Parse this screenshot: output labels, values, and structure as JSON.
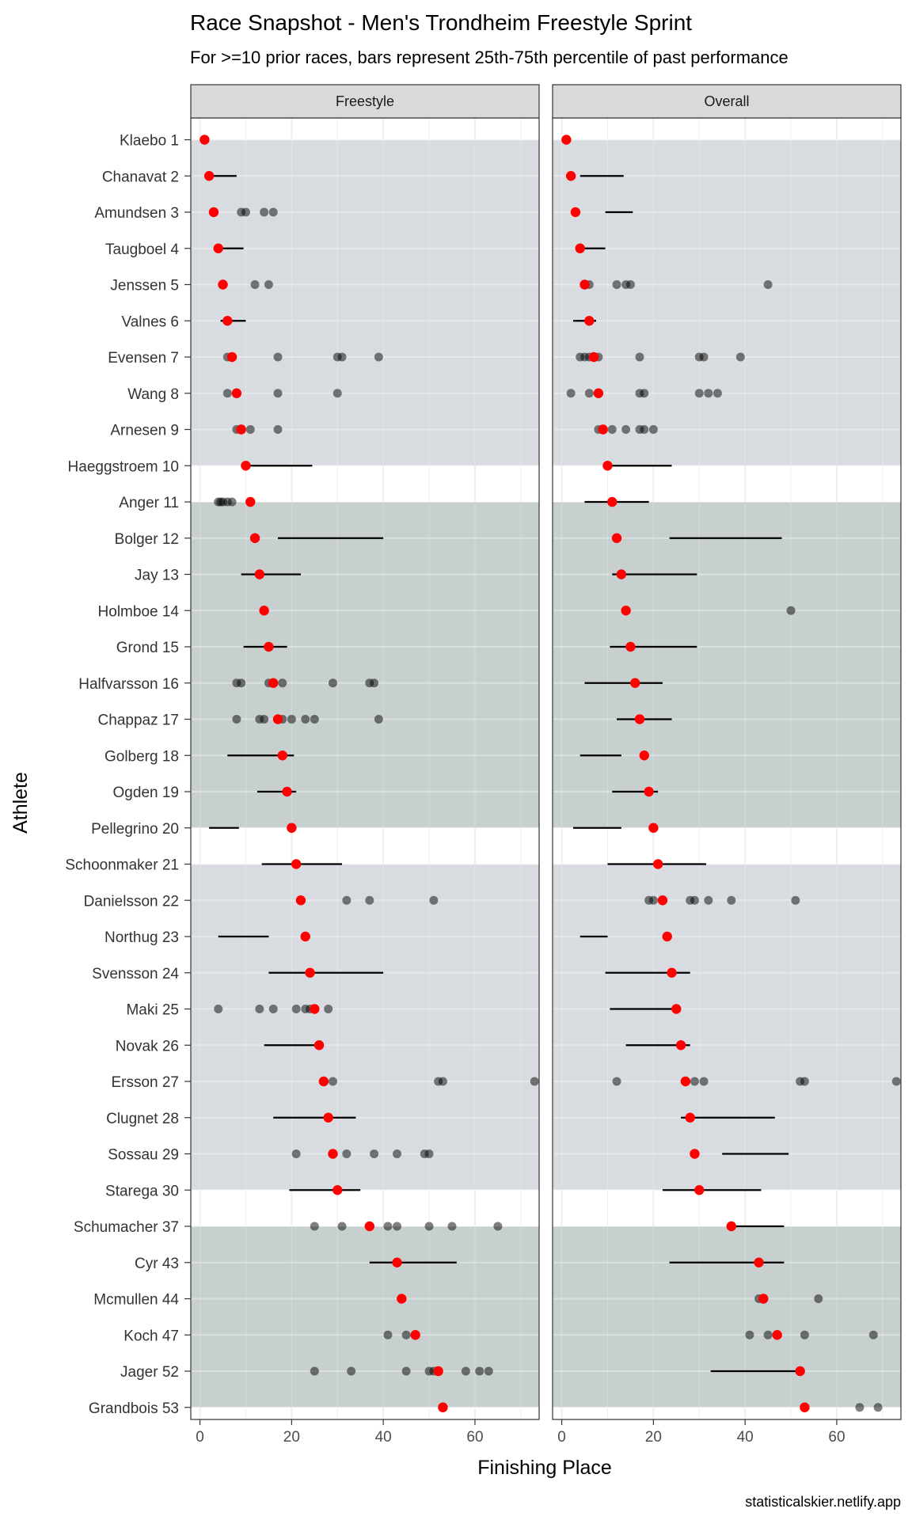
{
  "title": "Race Snapshot -  Men's Trondheim Freestyle Sprint",
  "subtitle": "For >=10 prior races, bars represent 25th-75th percentile of past performance",
  "caption": "statisticalskier.netlify.app",
  "colors": {
    "panel_border": "#333333",
    "strip_fill": "#d9d9d9",
    "band_light": "#d8dce1",
    "band_dark": "#c7d0cf",
    "point_red": "#ff0000",
    "point_gray": "#000000",
    "grid": "#ebebeb"
  },
  "chart_data": {
    "type": "scatter",
    "xlabel": "Finishing Place",
    "ylabel": "Athlete",
    "xlim": [
      -2,
      74
    ],
    "x_ticks": [
      0,
      20,
      40,
      60
    ],
    "grid": true,
    "facets": [
      "Freestyle",
      "Overall"
    ],
    "bands": [
      {
        "from": "Klaebo 1",
        "to": "Haeggstroem 10",
        "shade": "light"
      },
      {
        "from": "Anger 11",
        "to": "Pellegrino 20",
        "shade": "dark"
      },
      {
        "from": "Schoonmaker 21",
        "to": "Starega 30",
        "shade": "light"
      },
      {
        "from": "Schumacher 37",
        "to": "Grandbois 53",
        "shade": "dark"
      }
    ],
    "athletes": [
      {
        "name": "Klaebo 1",
        "place": 1,
        "freestyle": {
          "bar": null,
          "past": []
        },
        "overall": {
          "bar": null,
          "past": []
        }
      },
      {
        "name": "Chanavat 2",
        "place": 2,
        "freestyle": {
          "bar": [
            2,
            8
          ],
          "past": []
        },
        "overall": {
          "bar": [
            4,
            13.5
          ],
          "past": []
        }
      },
      {
        "name": "Amundsen 3",
        "place": 3,
        "freestyle": {
          "bar": null,
          "past": [
            9,
            10,
            14,
            16
          ]
        },
        "overall": {
          "bar": [
            9.5,
            15.5
          ],
          "past": []
        }
      },
      {
        "name": "Taugboel 4",
        "place": 4,
        "freestyle": {
          "bar": [
            4,
            9.5
          ],
          "past": []
        },
        "overall": {
          "bar": [
            4,
            9.5
          ],
          "past": []
        }
      },
      {
        "name": "Jenssen 5",
        "place": 5,
        "freestyle": {
          "bar": null,
          "past": [
            12,
            15
          ]
        },
        "overall": {
          "bar": null,
          "past": [
            6,
            12,
            14,
            15,
            45
          ]
        }
      },
      {
        "name": "Valnes 6",
        "place": 6,
        "freestyle": {
          "bar": [
            4.5,
            10
          ],
          "past": []
        },
        "overall": {
          "bar": [
            2.5,
            7.5
          ],
          "past": []
        }
      },
      {
        "name": "Evensen 7",
        "place": 7,
        "freestyle": {
          "bar": null,
          "past": [
            6,
            17,
            30,
            31,
            39
          ]
        },
        "overall": {
          "bar": null,
          "past": [
            4,
            5,
            6,
            8,
            17,
            30,
            31,
            39
          ]
        }
      },
      {
        "name": "Wang 8",
        "place": 8,
        "freestyle": {
          "bar": null,
          "past": [
            6,
            17,
            30
          ]
        },
        "overall": {
          "bar": null,
          "past": [
            2,
            6,
            17,
            18,
            30,
            32,
            34
          ]
        }
      },
      {
        "name": "Arnesen 9",
        "place": 9,
        "freestyle": {
          "bar": null,
          "past": [
            8,
            9,
            11,
            17
          ]
        },
        "overall": {
          "bar": null,
          "past": [
            8,
            9,
            11,
            14,
            17,
            18,
            20
          ]
        }
      },
      {
        "name": "Haeggstroem 10",
        "place": 10,
        "freestyle": {
          "bar": [
            10,
            24.5
          ],
          "past": []
        },
        "overall": {
          "bar": [
            10,
            24
          ],
          "past": []
        }
      },
      {
        "name": "Anger 11",
        "place": 11,
        "freestyle": {
          "bar": null,
          "past": [
            4,
            4.5,
            5,
            6,
            7
          ]
        },
        "overall": {
          "bar": [
            5,
            19
          ],
          "past": []
        }
      },
      {
        "name": "Bolger 12",
        "place": 12,
        "freestyle": {
          "bar": [
            17,
            40
          ],
          "past": []
        },
        "overall": {
          "bar": [
            23.5,
            48
          ],
          "past": []
        }
      },
      {
        "name": "Jay 13",
        "place": 13,
        "freestyle": {
          "bar": [
            9,
            22
          ],
          "past": []
        },
        "overall": {
          "bar": [
            11,
            29.5
          ],
          "past": []
        }
      },
      {
        "name": "Holmboe 14",
        "place": 14,
        "freestyle": {
          "bar": null,
          "past": []
        },
        "overall": {
          "bar": null,
          "past": [
            50
          ]
        }
      },
      {
        "name": "Grond 15",
        "place": 15,
        "freestyle": {
          "bar": [
            9.5,
            19
          ],
          "past": []
        },
        "overall": {
          "bar": [
            10.5,
            29.5
          ],
          "past": []
        }
      },
      {
        "name": "Halfvarsson 16",
        "place": 16,
        "freestyle": {
          "bar": null,
          "past": [
            8,
            9,
            15,
            18,
            29,
            37,
            38
          ]
        },
        "overall": {
          "bar": [
            5,
            22
          ],
          "past": []
        }
      },
      {
        "name": "Chappaz 17",
        "place": 17,
        "freestyle": {
          "bar": null,
          "past": [
            8,
            13,
            14,
            18,
            20,
            23,
            25,
            39
          ]
        },
        "overall": {
          "bar": [
            12,
            24
          ],
          "past": []
        }
      },
      {
        "name": "Golberg 18",
        "place": 18,
        "freestyle": {
          "bar": [
            6,
            20.5
          ],
          "past": []
        },
        "overall": {
          "bar": [
            4,
            13
          ],
          "past": []
        }
      },
      {
        "name": "Ogden 19",
        "place": 19,
        "freestyle": {
          "bar": [
            12.5,
            21
          ],
          "past": []
        },
        "overall": {
          "bar": [
            11,
            21
          ],
          "past": []
        }
      },
      {
        "name": "Pellegrino 20",
        "place": 20,
        "freestyle": {
          "bar": [
            2,
            8.5
          ],
          "past": []
        },
        "overall": {
          "bar": [
            2.5,
            13
          ],
          "past": []
        }
      },
      {
        "name": "Schoonmaker 21",
        "place": 21,
        "freestyle": {
          "bar": [
            13.5,
            31
          ],
          "past": []
        },
        "overall": {
          "bar": [
            10,
            31.5
          ],
          "past": []
        }
      },
      {
        "name": "Danielsson 22",
        "place": 22,
        "freestyle": {
          "bar": null,
          "past": [
            32,
            37,
            51
          ]
        },
        "overall": {
          "bar": null,
          "past": [
            19,
            20,
            28,
            29,
            32,
            37,
            51
          ]
        }
      },
      {
        "name": "Northug 23",
        "place": 23,
        "freestyle": {
          "bar": [
            4,
            15
          ],
          "past": []
        },
        "overall": {
          "bar": [
            4,
            10
          ],
          "past": []
        }
      },
      {
        "name": "Svensson 24",
        "place": 24,
        "freestyle": {
          "bar": [
            15,
            40
          ],
          "past": []
        },
        "overall": {
          "bar": [
            9.5,
            28
          ],
          "past": []
        }
      },
      {
        "name": "Maki 25",
        "place": 25,
        "freestyle": {
          "bar": null,
          "past": [
            4,
            13,
            16,
            21,
            23,
            24,
            28
          ]
        },
        "overall": {
          "bar": [
            10.5,
            25
          ],
          "past": []
        }
      },
      {
        "name": "Novak 26",
        "place": 26,
        "freestyle": {
          "bar": [
            14,
            26
          ],
          "past": []
        },
        "overall": {
          "bar": [
            14,
            28
          ],
          "past": []
        }
      },
      {
        "name": "Ersson 27",
        "place": 27,
        "freestyle": {
          "bar": null,
          "past": [
            29,
            52,
            53,
            73
          ]
        },
        "overall": {
          "bar": null,
          "past": [
            12,
            29,
            31,
            52,
            53,
            73
          ]
        }
      },
      {
        "name": "Clugnet 28",
        "place": 28,
        "freestyle": {
          "bar": [
            16,
            34
          ],
          "past": []
        },
        "overall": {
          "bar": [
            26,
            46.5
          ],
          "past": []
        }
      },
      {
        "name": "Sossau 29",
        "place": 29,
        "freestyle": {
          "bar": null,
          "past": [
            21,
            32,
            38,
            43,
            49,
            50
          ]
        },
        "overall": {
          "bar": [
            35,
            49.5
          ],
          "past": []
        }
      },
      {
        "name": "Starega 30",
        "place": 30,
        "freestyle": {
          "bar": [
            19.5,
            35
          ],
          "past": []
        },
        "overall": {
          "bar": [
            22,
            43.5
          ],
          "past": []
        }
      },
      {
        "name": "Schumacher 37",
        "place": 37,
        "freestyle": {
          "bar": null,
          "past": [
            25,
            31,
            41,
            43,
            50,
            55,
            65
          ]
        },
        "overall": {
          "bar": [
            37,
            48.5
          ],
          "past": []
        }
      },
      {
        "name": "Cyr 43",
        "place": 43,
        "freestyle": {
          "bar": [
            37,
            56
          ],
          "past": []
        },
        "overall": {
          "bar": [
            23.5,
            48.5
          ],
          "past": []
        }
      },
      {
        "name": "Mcmullen 44",
        "place": 44,
        "freestyle": {
          "bar": null,
          "past": []
        },
        "overall": {
          "bar": null,
          "past": [
            43,
            56
          ]
        }
      },
      {
        "name": "Koch 47",
        "place": 47,
        "freestyle": {
          "bar": null,
          "past": [
            41,
            45
          ]
        },
        "overall": {
          "bar": null,
          "past": [
            41,
            45,
            53,
            68
          ]
        }
      },
      {
        "name": "Jager 52",
        "place": 52,
        "freestyle": {
          "bar": null,
          "past": [
            25,
            33,
            45,
            50,
            51,
            58,
            61,
            63
          ]
        },
        "overall": {
          "bar": [
            32.5,
            52
          ],
          "past": []
        }
      },
      {
        "name": "Grandbois 53",
        "place": 53,
        "freestyle": {
          "bar": null,
          "past": []
        },
        "overall": {
          "bar": null,
          "past": [
            65,
            69
          ]
        }
      }
    ]
  }
}
